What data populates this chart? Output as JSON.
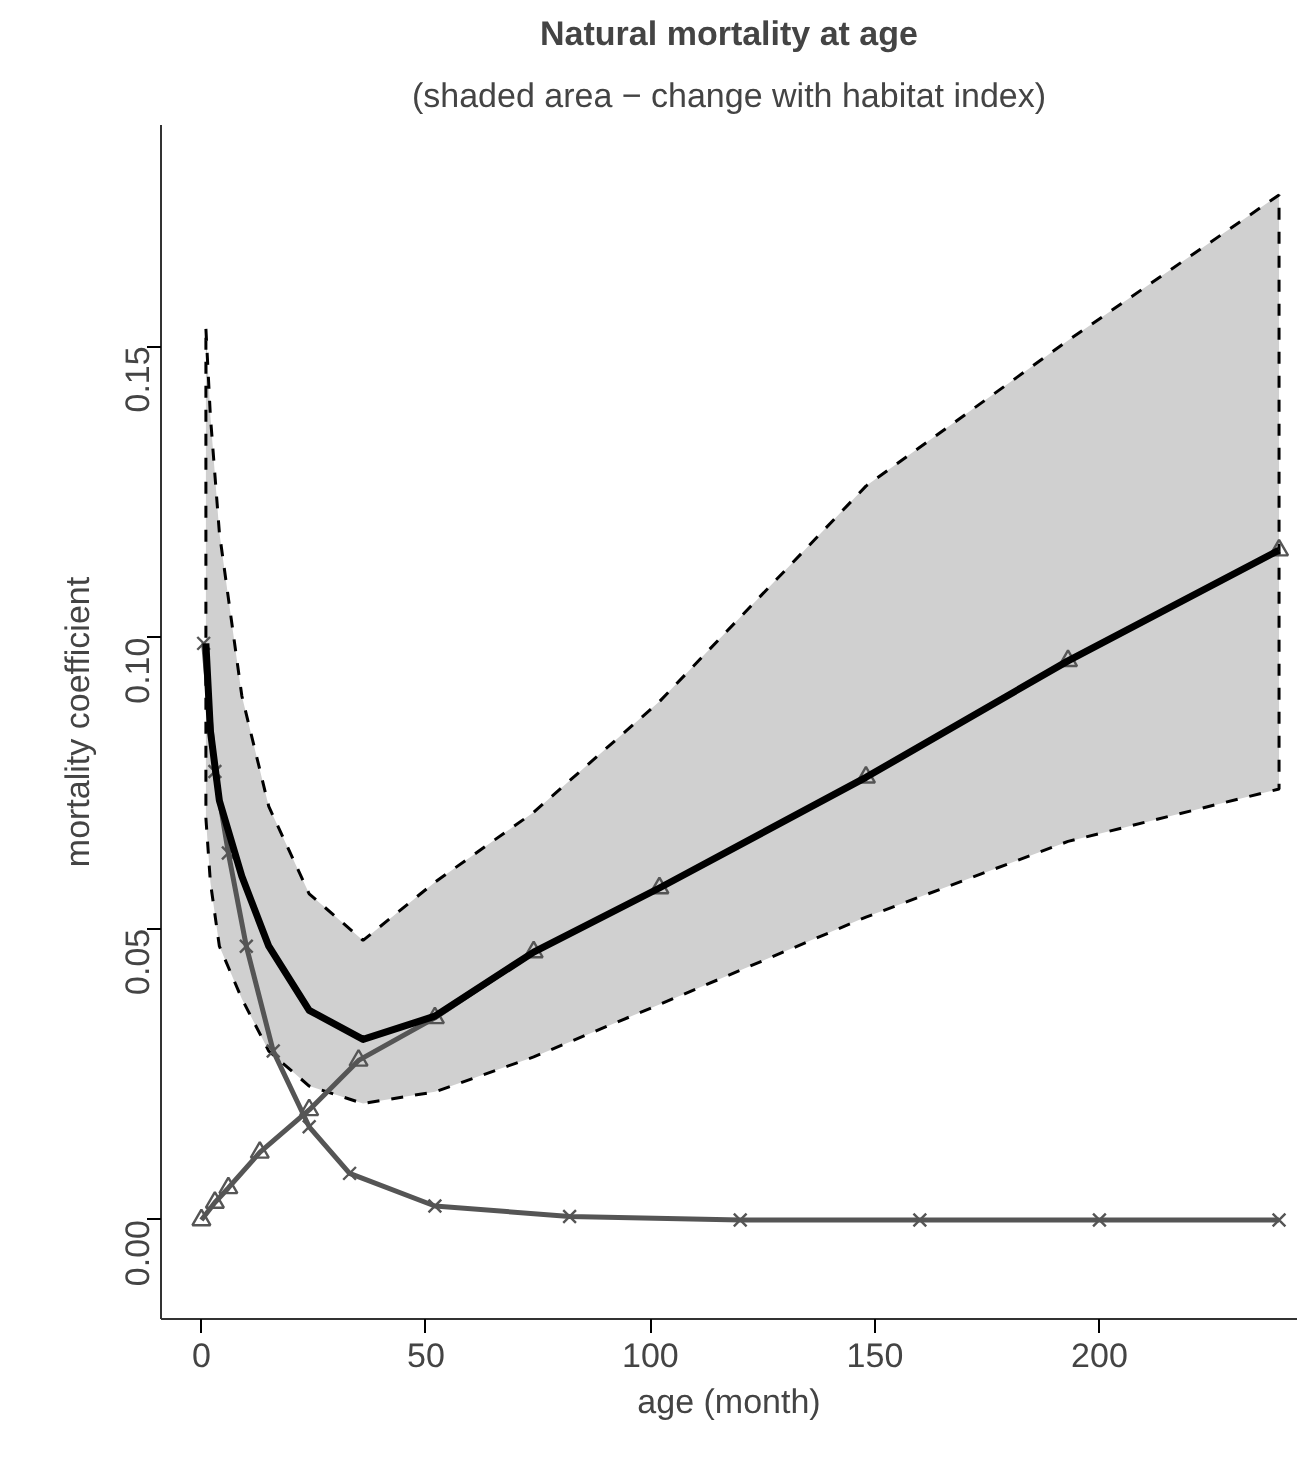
{
  "chart_data": {
    "type": "line",
    "title": "Natural mortality at age",
    "subtitle": "(shaded area − change with habitat index)",
    "xlabel": "age (month)",
    "ylabel": "mortality coefficient",
    "xlim": [
      -9,
      244
    ],
    "ylim": [
      -0.017,
      0.188
    ],
    "xticks": [
      0,
      50,
      100,
      150,
      200
    ],
    "yticks": [
      {
        "value": 0,
        "label": "0.00"
      },
      {
        "value": 0.05,
        "label": "0.05"
      },
      {
        "value": 0.1,
        "label": "0.10"
      },
      {
        "value": 0.15,
        "label": "0.15"
      }
    ],
    "series": [
      {
        "color": "#000000",
        "marker": "none",
        "line_style": "solid",
        "x": [
          1,
          2,
          4,
          9,
          15,
          24,
          36,
          52,
          74,
          102,
          148,
          193,
          240
        ],
        "values": [
          0.099,
          0.084,
          0.072,
          0.059,
          0.047,
          0.036,
          0.031,
          0.035,
          0.046,
          0.057,
          0.076,
          0.096,
          0.115
        ],
        "lower": [
          0.069,
          0.058,
          0.047,
          0.038,
          0.029,
          0.023,
          0.02,
          0.022,
          0.028,
          0.037,
          0.052,
          0.065,
          0.074
        ],
        "upper": [
          0.153,
          0.138,
          0.118,
          0.09,
          0.071,
          0.056,
          0.048,
          0.058,
          0.07,
          0.089,
          0.126,
          0.151,
          0.176
        ]
      },
      {
        "color": "#555555",
        "marker": "triangle",
        "line_style": "solid",
        "x": [
          0,
          3,
          6,
          13,
          24,
          35,
          52,
          74,
          102,
          148,
          193,
          240
        ],
        "values": [
          0,
          0.003,
          0.0055,
          0.0116,
          0.0189,
          0.0274,
          0.0347,
          0.046,
          0.057,
          0.076,
          0.096,
          0.115
        ]
      },
      {
        "color": "#555555",
        "marker": "cross",
        "line_style": "solid",
        "x": [
          0.5,
          3,
          6,
          10,
          16,
          24,
          33,
          52,
          82,
          120,
          160,
          200,
          240
        ],
        "values": [
          0.099,
          0.077,
          0.063,
          0.047,
          0.029,
          0.016,
          0.008,
          0.0024,
          0.0006,
          0,
          0,
          0,
          0
        ]
      }
    ]
  }
}
